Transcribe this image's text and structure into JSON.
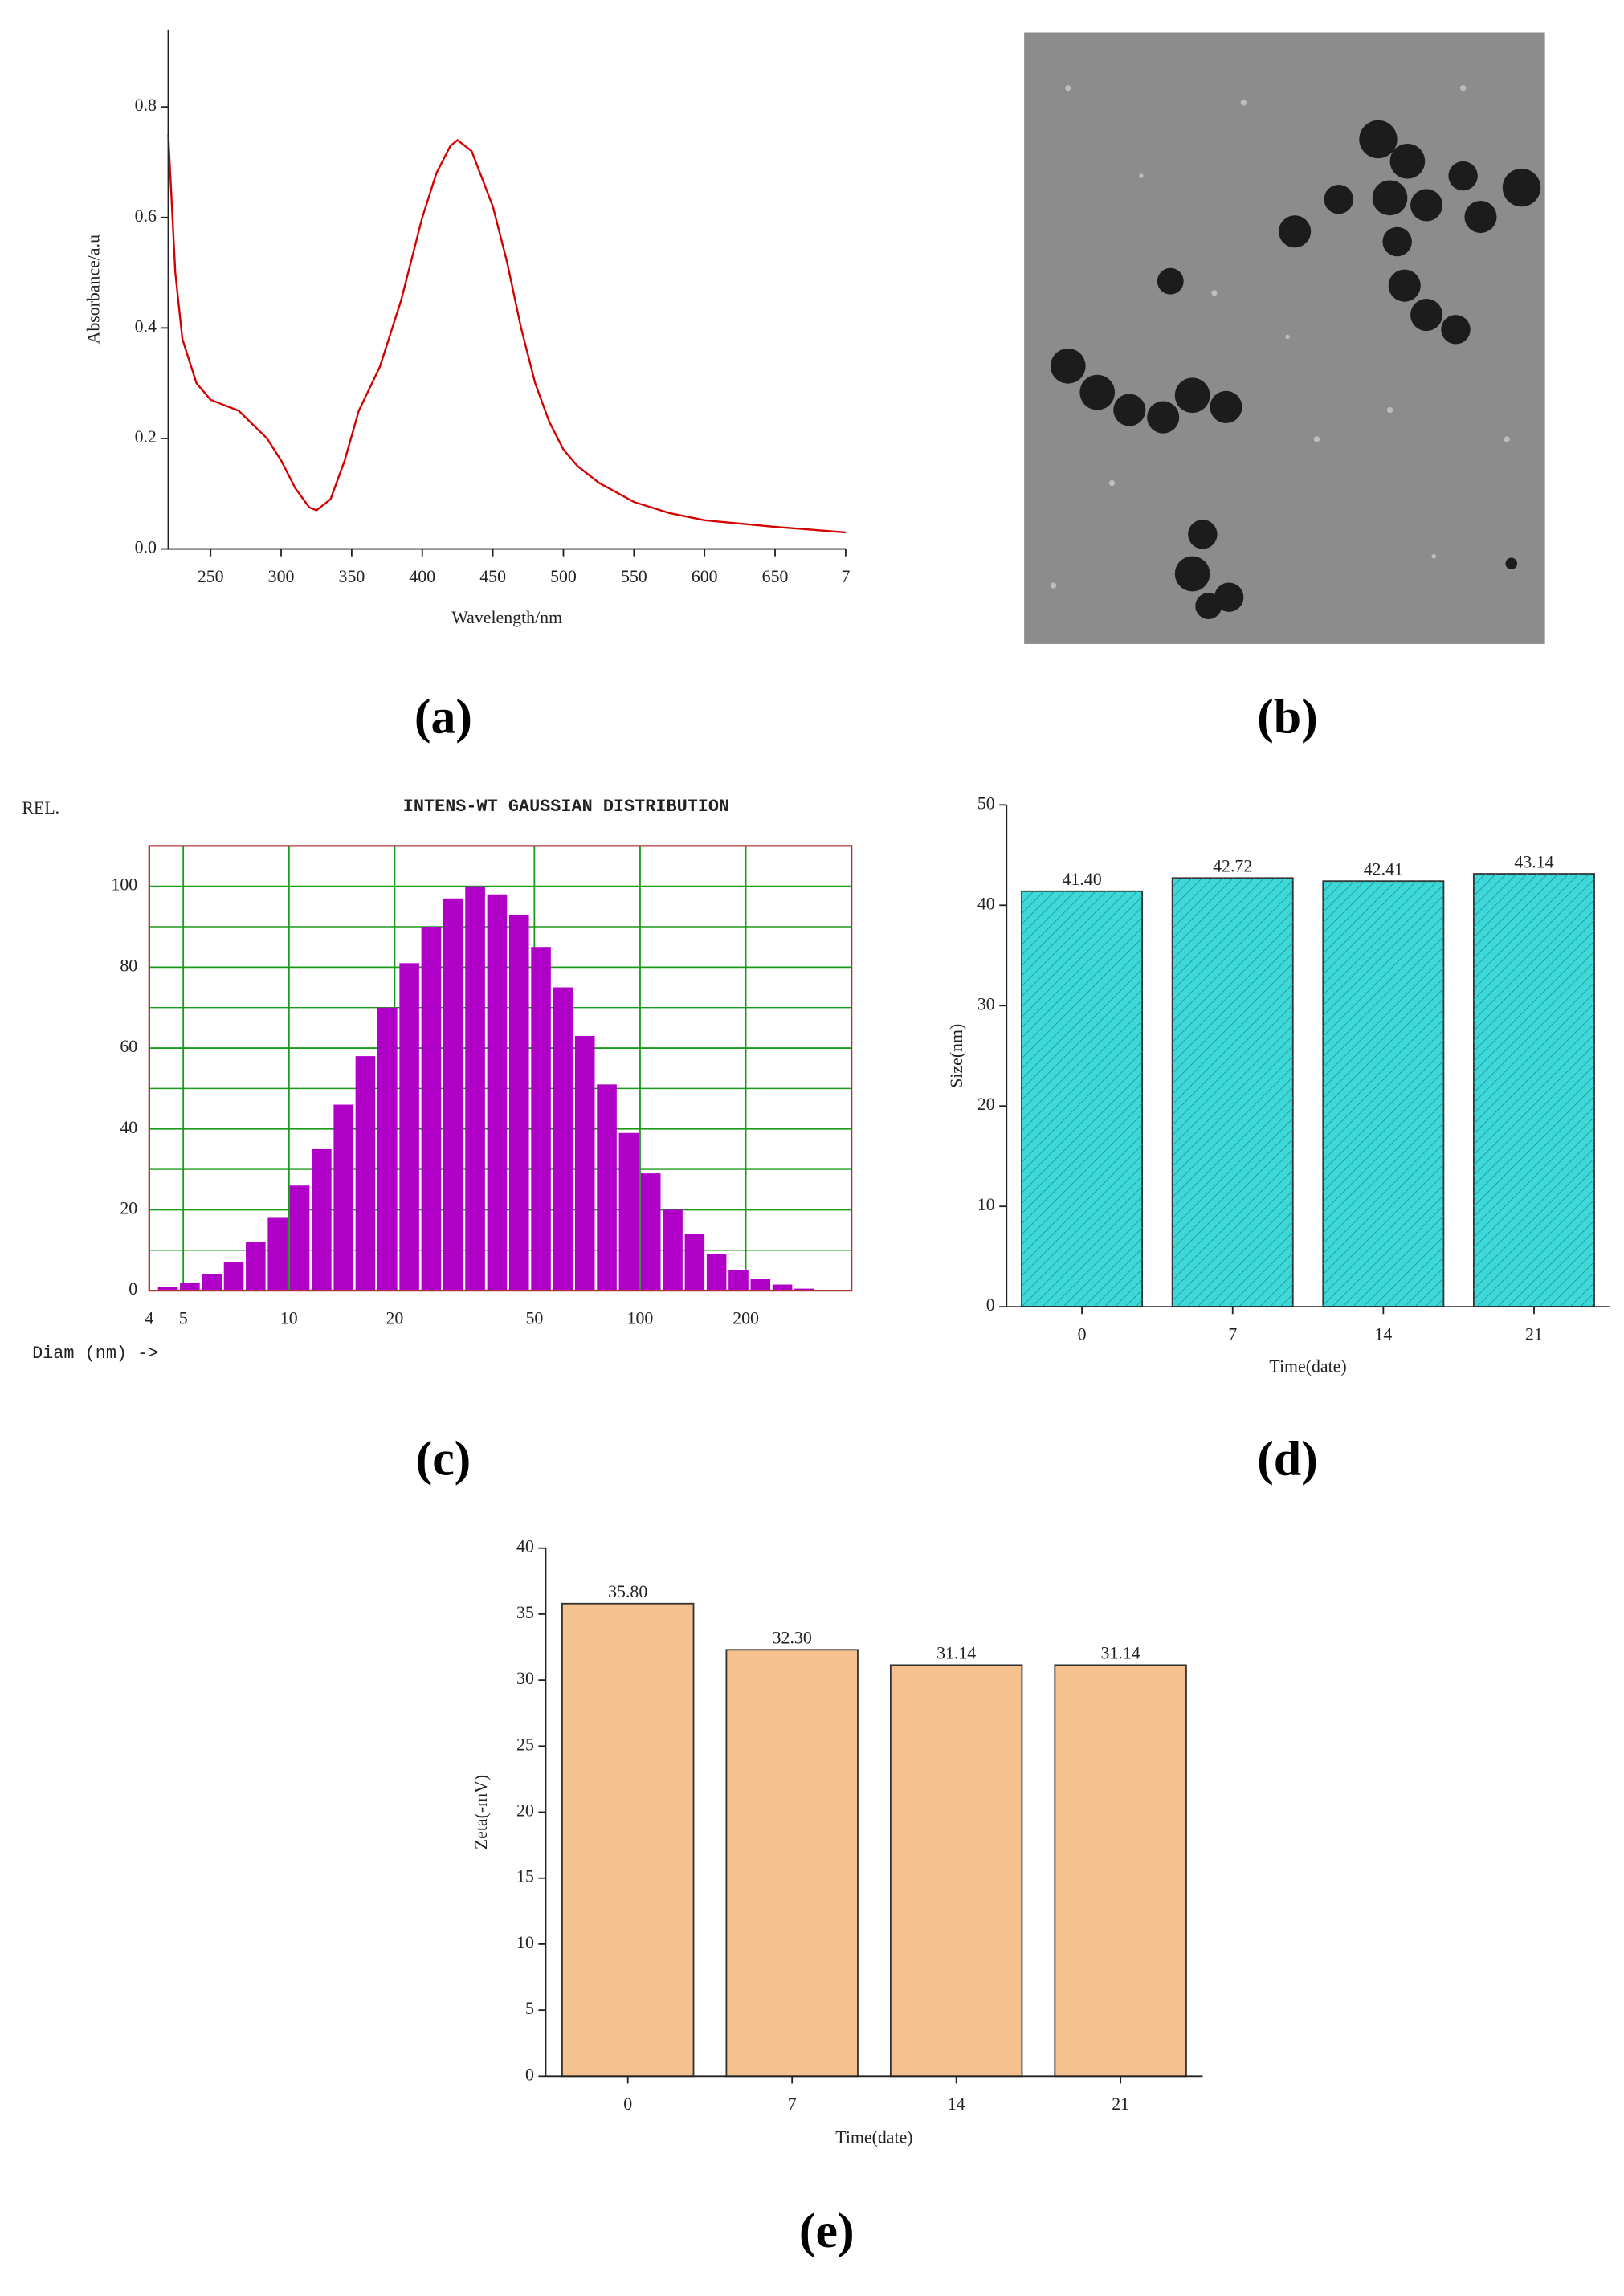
{
  "chart_data": [
    {
      "type": "line",
      "label": "(a)",
      "ylabel": "Absorbance/a.u",
      "xlabel": "Wavelength/nm",
      "color": "#d40000",
      "xlim": [
        220,
        700
      ],
      "ylim": [
        0,
        0.94
      ],
      "xticks": [
        250,
        300,
        350,
        400,
        450,
        500,
        550,
        600,
        650,
        {
          "value": 700,
          "label": "7"
        }
      ],
      "yticks": [
        {
          "value": 0,
          "label": "0.0"
        },
        0.2,
        0.4,
        0.6,
        0.8
      ],
      "x": [
        220,
        225,
        230,
        240,
        250,
        270,
        290,
        300,
        310,
        320,
        325,
        335,
        345,
        355,
        370,
        385,
        400,
        410,
        420,
        425,
        435,
        450,
        460,
        470,
        480,
        490,
        500,
        510,
        525,
        550,
        575,
        600,
        650,
        700
      ],
      "values": [
        0.75,
        0.5,
        0.38,
        0.3,
        0.27,
        0.25,
        0.2,
        0.16,
        0.11,
        0.075,
        0.07,
        0.09,
        0.16,
        0.25,
        0.33,
        0.45,
        0.6,
        0.68,
        0.73,
        0.74,
        0.72,
        0.62,
        0.52,
        0.4,
        0.3,
        0.23,
        0.18,
        0.15,
        0.12,
        0.085,
        0.065,
        0.052,
        0.04,
        0.03
      ]
    },
    {
      "type": "histogram",
      "label": "(c)",
      "title": "INTENS-WT GAUSSIAN DISTRIBUTION",
      "ylabel": "REL.",
      "xlabel": "Diam (nm) ->",
      "color": "#b000c8",
      "grid": true,
      "xlog": true,
      "xlim": [
        4,
        400
      ],
      "ylim": [
        0,
        110
      ],
      "xticks": [
        4,
        5,
        10,
        20,
        50,
        100,
        200
      ],
      "yticks": [
        0,
        20,
        40,
        60,
        80,
        100
      ],
      "bins": [
        4.217,
        4.87,
        5.623,
        6.494,
        7.499,
        8.66,
        10,
        11.55,
        13.34,
        15.4,
        17.78,
        20.54,
        23.71,
        27.38,
        31.62,
        36.52,
        42.17,
        48.7,
        56.23,
        64.94,
        74.99,
        86.6,
        100,
        115.5,
        133.4,
        154.0,
        177.8,
        205.4,
        237.1,
        273.8,
        316.2
      ],
      "values": [
        1,
        2,
        4,
        7,
        12,
        18,
        26,
        35,
        46,
        58,
        70,
        81,
        90,
        97,
        100,
        98,
        93,
        85,
        75,
        63,
        51,
        39,
        29,
        20,
        14,
        9,
        5,
        3,
        1.5,
        0.5
      ]
    },
    {
      "type": "bar",
      "label": "(d)",
      "ylabel": "Size(nm)",
      "xlabel": "Time(date)",
      "color": "#3fd8d8",
      "hatch": true,
      "categories": [
        "0",
        "7",
        "14",
        "21"
      ],
      "values": [
        41.4,
        42.72,
        42.41,
        43.14
      ],
      "value_labels": [
        "41.40",
        "42.72",
        "42.41",
        "43.14"
      ],
      "ylim": [
        0,
        50
      ],
      "yticks": [
        0,
        10,
        20,
        30,
        40,
        50
      ]
    },
    {
      "type": "bar",
      "label": "(e)",
      "ylabel": "Zeta(-mV)",
      "xlabel": "Time(date)",
      "color": "#f5c18f",
      "categories": [
        "0",
        "7",
        "14",
        "21"
      ],
      "values": [
        35.8,
        32.3,
        31.14,
        31.14
      ],
      "value_labels": [
        "35.80",
        "32.30",
        "31.14",
        "31.14"
      ],
      "ylim": [
        0,
        40
      ],
      "yticks": [
        0,
        5,
        10,
        15,
        20,
        25,
        30,
        35,
        40
      ]
    }
  ],
  "image_panel": {
    "label": "(b)"
  }
}
